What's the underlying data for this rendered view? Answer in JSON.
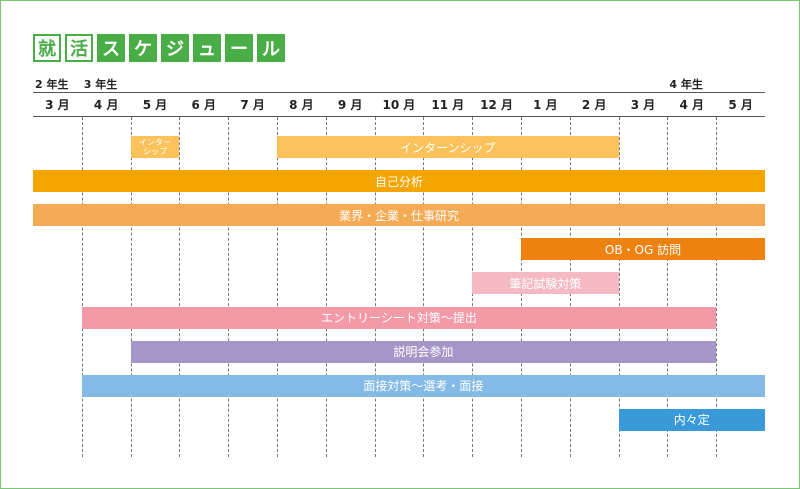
{
  "title_chars": [
    {
      "char": "就",
      "style": "outline"
    },
    {
      "char": "活",
      "style": "outline"
    },
    {
      "char": "ス",
      "style": "fill"
    },
    {
      "char": "ケ",
      "style": "fill"
    },
    {
      "char": "ジ",
      "style": "fill"
    },
    {
      "char": "ュ",
      "style": "fill"
    },
    {
      "char": "ー",
      "style": "fill"
    },
    {
      "char": "ル",
      "style": "fill"
    }
  ],
  "year_labels": [
    {
      "text": "2 年生",
      "col": 0
    },
    {
      "text": "3 年生",
      "col": 1
    },
    {
      "text": "4 年生",
      "col": 13
    }
  ],
  "months": [
    "3 月",
    "4 月",
    "5 月",
    "6 月",
    "7 月",
    "8 月",
    "9 月",
    "10 月",
    "11 月",
    "12 月",
    "1 月",
    "2 月",
    "3 月",
    "4 月",
    "5 月"
  ],
  "bars": [
    {
      "label_lines": [
        "インター",
        "シップ"
      ],
      "start": 2,
      "end": 3,
      "row": 0,
      "color": "#fbc25b",
      "small": true
    },
    {
      "label_lines": [
        "インターンシップ"
      ],
      "start": 5,
      "end": 12,
      "row": 0,
      "color": "#fbc25b"
    },
    {
      "label_lines": [
        "自己分析"
      ],
      "start": 0,
      "end": 15,
      "row": 1,
      "color": "#f4a500"
    },
    {
      "label_lines": [
        "業界・企業・仕事研究"
      ],
      "start": 0,
      "end": 15,
      "row": 2,
      "color": "#f5aa56"
    },
    {
      "label_lines": [
        "OB・OG 訪問"
      ],
      "start": 10,
      "end": 15,
      "row": 3,
      "color": "#ee8211"
    },
    {
      "label_lines": [
        "筆記試験対策"
      ],
      "start": 9,
      "end": 12,
      "row": 4,
      "color": "#f5b9c4"
    },
    {
      "label_lines": [
        "エントリーシート対策〜提出"
      ],
      "start": 1,
      "end": 14,
      "row": 5,
      "color": "#f29aa8"
    },
    {
      "label_lines": [
        "説明会参加"
      ],
      "start": 2,
      "end": 14,
      "row": 6,
      "color": "#a696c8"
    },
    {
      "label_lines": [
        "面接対策〜選考・面接"
      ],
      "start": 1,
      "end": 15,
      "row": 7,
      "color": "#84bbe6"
    },
    {
      "label_lines": [
        "内々定"
      ],
      "start": 12,
      "end": 15,
      "row": 8,
      "color": "#3a9ad9"
    }
  ]
}
